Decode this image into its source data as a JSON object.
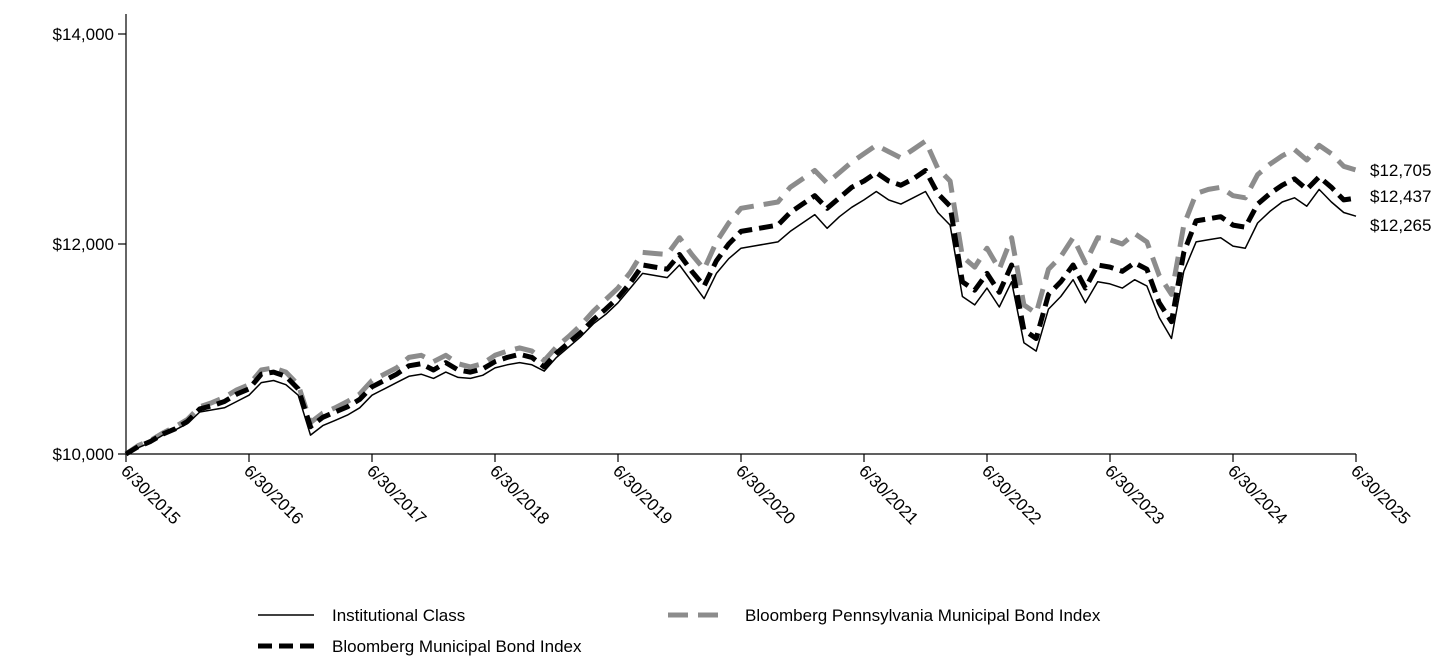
{
  "chart_data": {
    "type": "line",
    "title": "",
    "xlabel": "",
    "ylabel": "",
    "ylim": [
      10000,
      14000
    ],
    "y_ticks": [
      {
        "value": 10000,
        "label": "$10,000"
      },
      {
        "value": 12000,
        "label": "$12,000"
      },
      {
        "value": 14000,
        "label": "$14,000"
      }
    ],
    "x_ticks": [
      "6/30/2015",
      "6/30/2016",
      "6/30/2017",
      "6/30/2018",
      "6/30/2019",
      "6/30/2020",
      "6/30/2021",
      "6/30/2022",
      "6/30/2023",
      "6/30/2024",
      "6/30/2025"
    ],
    "x_range": [
      2015.5,
      2025.5
    ],
    "grid": false,
    "legend_position": "bottom",
    "series": [
      {
        "name": "Institutional Class",
        "color": "#000000",
        "style": "solid",
        "end_label": "$12,265",
        "x": [
          2015.5,
          2015.6,
          2015.7,
          2015.8,
          2015.9,
          2016.0,
          2016.1,
          2016.2,
          2016.3,
          2016.4,
          2016.5,
          2016.6,
          2016.7,
          2016.8,
          2016.9,
          2017.0,
          2017.1,
          2017.2,
          2017.3,
          2017.4,
          2017.5,
          2017.6,
          2017.7,
          2017.8,
          2017.9,
          2018.0,
          2018.1,
          2018.2,
          2018.3,
          2018.4,
          2018.5,
          2018.6,
          2018.7,
          2018.8,
          2018.9,
          2019.0,
          2019.1,
          2019.2,
          2019.3,
          2019.4,
          2019.5,
          2019.6,
          2019.7,
          2019.8,
          2019.9,
          2020.0,
          2020.1,
          2020.2,
          2020.3,
          2020.4,
          2020.5,
          2020.6,
          2020.7,
          2020.8,
          2020.9,
          2021.0,
          2021.1,
          2021.2,
          2021.3,
          2021.4,
          2021.5,
          2021.6,
          2021.7,
          2021.8,
          2021.9,
          2022.0,
          2022.1,
          2022.2,
          2022.3,
          2022.4,
          2022.5,
          2022.6,
          2022.7,
          2022.8,
          2022.9,
          2023.0,
          2023.1,
          2023.2,
          2023.3,
          2023.4,
          2023.5,
          2023.6,
          2023.7,
          2023.8,
          2023.9,
          2024.0,
          2024.1,
          2024.2,
          2024.3,
          2024.4,
          2024.5,
          2024.6,
          2024.7,
          2024.8,
          2024.9,
          2025.0,
          2025.1,
          2025.2,
          2025.3,
          2025.4,
          2025.5
        ],
        "values": [
          10000,
          10060,
          10110,
          10180,
          10230,
          10290,
          10400,
          10420,
          10440,
          10500,
          10560,
          10680,
          10700,
          10660,
          10560,
          10180,
          10270,
          10320,
          10370,
          10440,
          10560,
          10620,
          10680,
          10740,
          10760,
          10720,
          10780,
          10730,
          10720,
          10750,
          10820,
          10850,
          10870,
          10850,
          10790,
          10920,
          11020,
          11120,
          11240,
          11330,
          11440,
          11580,
          11720,
          11700,
          11680,
          11800,
          11640,
          11480,
          11720,
          11860,
          11960,
          11980,
          12000,
          12020,
          12120,
          12200,
          12280,
          12150,
          12260,
          12350,
          12420,
          12500,
          12420,
          12380,
          12440,
          12500,
          12300,
          12180,
          11500,
          11420,
          11580,
          11400,
          11640,
          11060,
          10980,
          11380,
          11500,
          11660,
          11440,
          11640,
          11620,
          11580,
          11660,
          11600,
          11300,
          11100,
          11740,
          12020,
          12040,
          12060,
          11980,
          11960,
          12200,
          12310,
          12400,
          12440,
          12360,
          12520,
          12400,
          12300,
          12265
        ]
      },
      {
        "name": "Bloomberg Municipal Bond Index",
        "color": "#000000",
        "style": "dashed",
        "end_label": "$12,437",
        "x": [
          2015.5,
          2015.6,
          2015.7,
          2015.8,
          2015.9,
          2016.0,
          2016.1,
          2016.2,
          2016.3,
          2016.4,
          2016.5,
          2016.6,
          2016.7,
          2016.8,
          2016.9,
          2017.0,
          2017.1,
          2017.2,
          2017.3,
          2017.4,
          2017.5,
          2017.6,
          2017.7,
          2017.8,
          2017.9,
          2018.0,
          2018.1,
          2018.2,
          2018.3,
          2018.4,
          2018.5,
          2018.6,
          2018.7,
          2018.8,
          2018.9,
          2019.0,
          2019.1,
          2019.2,
          2019.3,
          2019.4,
          2019.5,
          2019.6,
          2019.7,
          2019.8,
          2019.9,
          2020.0,
          2020.1,
          2020.2,
          2020.3,
          2020.4,
          2020.5,
          2020.6,
          2020.7,
          2020.8,
          2020.9,
          2021.0,
          2021.1,
          2021.2,
          2021.3,
          2021.4,
          2021.5,
          2021.6,
          2021.7,
          2021.8,
          2021.9,
          2022.0,
          2022.1,
          2022.2,
          2022.3,
          2022.4,
          2022.5,
          2022.6,
          2022.7,
          2022.8,
          2022.9,
          2023.0,
          2023.1,
          2023.2,
          2023.3,
          2023.4,
          2023.5,
          2023.6,
          2023.7,
          2023.8,
          2023.9,
          2024.0,
          2024.1,
          2024.2,
          2024.3,
          2024.4,
          2024.5,
          2024.6,
          2024.7,
          2024.8,
          2024.9,
          2025.0,
          2025.1,
          2025.2,
          2025.3,
          2025.4,
          2025.5
        ],
        "values": [
          10000,
          10070,
          10120,
          10190,
          10240,
          10310,
          10430,
          10460,
          10500,
          10570,
          10620,
          10760,
          10780,
          10740,
          10620,
          10260,
          10350,
          10400,
          10450,
          10520,
          10640,
          10700,
          10760,
          10840,
          10860,
          10800,
          10870,
          10800,
          10780,
          10810,
          10880,
          10920,
          10950,
          10920,
          10830,
          10960,
          11060,
          11160,
          11280,
          11380,
          11490,
          11630,
          11800,
          11780,
          11760,
          11900,
          11740,
          11600,
          11840,
          12000,
          12120,
          12140,
          12160,
          12180,
          12300,
          12380,
          12460,
          12340,
          12440,
          12540,
          12600,
          12680,
          12600,
          12560,
          12620,
          12700,
          12480,
          12360,
          11640,
          11560,
          11720,
          11540,
          11800,
          11180,
          11100,
          11520,
          11640,
          11800,
          11580,
          11800,
          11780,
          11740,
          11820,
          11760,
          11440,
          11260,
          11920,
          12220,
          12240,
          12260,
          12180,
          12160,
          12380,
          12480,
          12560,
          12620,
          12520,
          12640,
          12540,
          12420,
          12437
        ]
      },
      {
        "name": "Bloomberg Pennsylvania Municipal Bond Index",
        "color": "#8c8c8c",
        "style": "dashed",
        "end_label": "$12,705",
        "x": [
          2015.5,
          2015.6,
          2015.7,
          2015.8,
          2015.9,
          2016.0,
          2016.1,
          2016.2,
          2016.3,
          2016.4,
          2016.5,
          2016.6,
          2016.7,
          2016.8,
          2016.9,
          2017.0,
          2017.1,
          2017.2,
          2017.3,
          2017.4,
          2017.5,
          2017.6,
          2017.7,
          2017.8,
          2017.9,
          2018.0,
          2018.1,
          2018.2,
          2018.3,
          2018.4,
          2018.5,
          2018.6,
          2018.7,
          2018.8,
          2018.9,
          2019.0,
          2019.1,
          2019.2,
          2019.3,
          2019.4,
          2019.5,
          2019.6,
          2019.7,
          2019.8,
          2019.9,
          2020.0,
          2020.1,
          2020.2,
          2020.3,
          2020.4,
          2020.5,
          2020.6,
          2020.7,
          2020.8,
          2020.9,
          2021.0,
          2021.1,
          2021.2,
          2021.3,
          2021.4,
          2021.5,
          2021.6,
          2021.7,
          2021.8,
          2021.9,
          2022.0,
          2022.1,
          2022.2,
          2022.3,
          2022.4,
          2022.5,
          2022.6,
          2022.7,
          2022.8,
          2022.9,
          2023.0,
          2023.1,
          2023.2,
          2023.3,
          2023.4,
          2023.5,
          2023.6,
          2023.7,
          2023.8,
          2023.9,
          2024.0,
          2024.1,
          2024.2,
          2024.3,
          2024.4,
          2024.5,
          2024.6,
          2024.7,
          2024.8,
          2024.9,
          2025.0,
          2025.1,
          2025.2,
          2025.3,
          2025.4,
          2025.5
        ],
        "values": [
          10000,
          10080,
          10130,
          10200,
          10260,
          10330,
          10450,
          10490,
          10540,
          10610,
          10660,
          10800,
          10820,
          10780,
          10660,
          10300,
          10390,
          10440,
          10500,
          10570,
          10700,
          10760,
          10820,
          10920,
          10940,
          10880,
          10940,
          10860,
          10830,
          10860,
          10940,
          10980,
          11010,
          10980,
          10890,
          11020,
          11120,
          11230,
          11360,
          11470,
          11580,
          11730,
          11920,
          11910,
          11900,
          12060,
          11900,
          11760,
          12020,
          12200,
          12340,
          12360,
          12380,
          12400,
          12540,
          12620,
          12700,
          12580,
          12680,
          12780,
          12860,
          12940,
          12880,
          12820,
          12900,
          12980,
          12720,
          12600,
          11880,
          11780,
          11960,
          11760,
          12060,
          11420,
          11340,
          11760,
          11880,
          12060,
          11820,
          12060,
          12040,
          12000,
          12100,
          12020,
          11700,
          11520,
          12180,
          12480,
          12520,
          12540,
          12460,
          12440,
          12660,
          12760,
          12840,
          12900,
          12800,
          12940,
          12860,
          12740,
          12705
        ]
      }
    ]
  }
}
